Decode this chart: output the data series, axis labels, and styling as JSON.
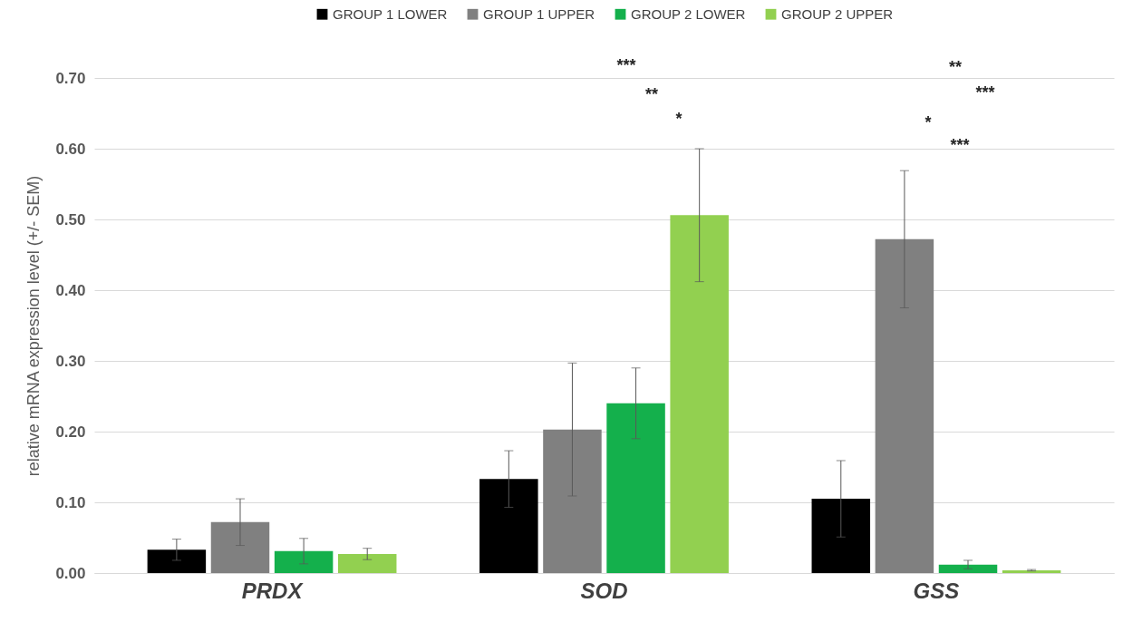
{
  "chart_data": {
    "type": "bar",
    "ylabel": "relative mRNA expression level (+/- SEM)",
    "categories": [
      "PRDX",
      "SOD",
      "GSS"
    ],
    "series": [
      {
        "name": "GROUP 1 LOWER",
        "color": "#000000",
        "values": [
          0.033,
          0.133,
          0.105
        ],
        "errors": [
          0.015,
          0.04,
          0.054
        ]
      },
      {
        "name": "GROUP 1 UPPER",
        "color": "#808080",
        "values": [
          0.072,
          0.203,
          0.472
        ],
        "errors": [
          0.033,
          0.094,
          0.097
        ]
      },
      {
        "name": "GROUP 2 LOWER",
        "color": "#14b04c",
        "values": [
          0.031,
          0.24,
          0.012
        ],
        "errors": [
          0.018,
          0.05,
          0.006
        ]
      },
      {
        "name": "GROUP 2 UPPER",
        "color": "#92d050",
        "values": [
          0.027,
          0.506,
          0.004
        ],
        "errors": [
          0.008,
          0.094,
          0.001
        ]
      }
    ],
    "ylim": [
      0,
      0.7
    ],
    "yticks": [
      {
        "value": 0,
        "label": "0.00"
      },
      {
        "value": 0.1,
        "label": "0.10"
      },
      {
        "value": 0.2,
        "label": "0.20"
      },
      {
        "value": 0.3,
        "label": "0.30"
      },
      {
        "value": 0.4,
        "label": "0.40"
      },
      {
        "value": 0.5,
        "label": "0.50"
      },
      {
        "value": 0.6,
        "label": "0.60"
      },
      {
        "value": 0.7,
        "label": "0.70"
      }
    ],
    "grid": "y",
    "legend": "top",
    "annotations": [
      "***",
      "**",
      "*",
      "**",
      "***",
      "*",
      "***"
    ]
  }
}
